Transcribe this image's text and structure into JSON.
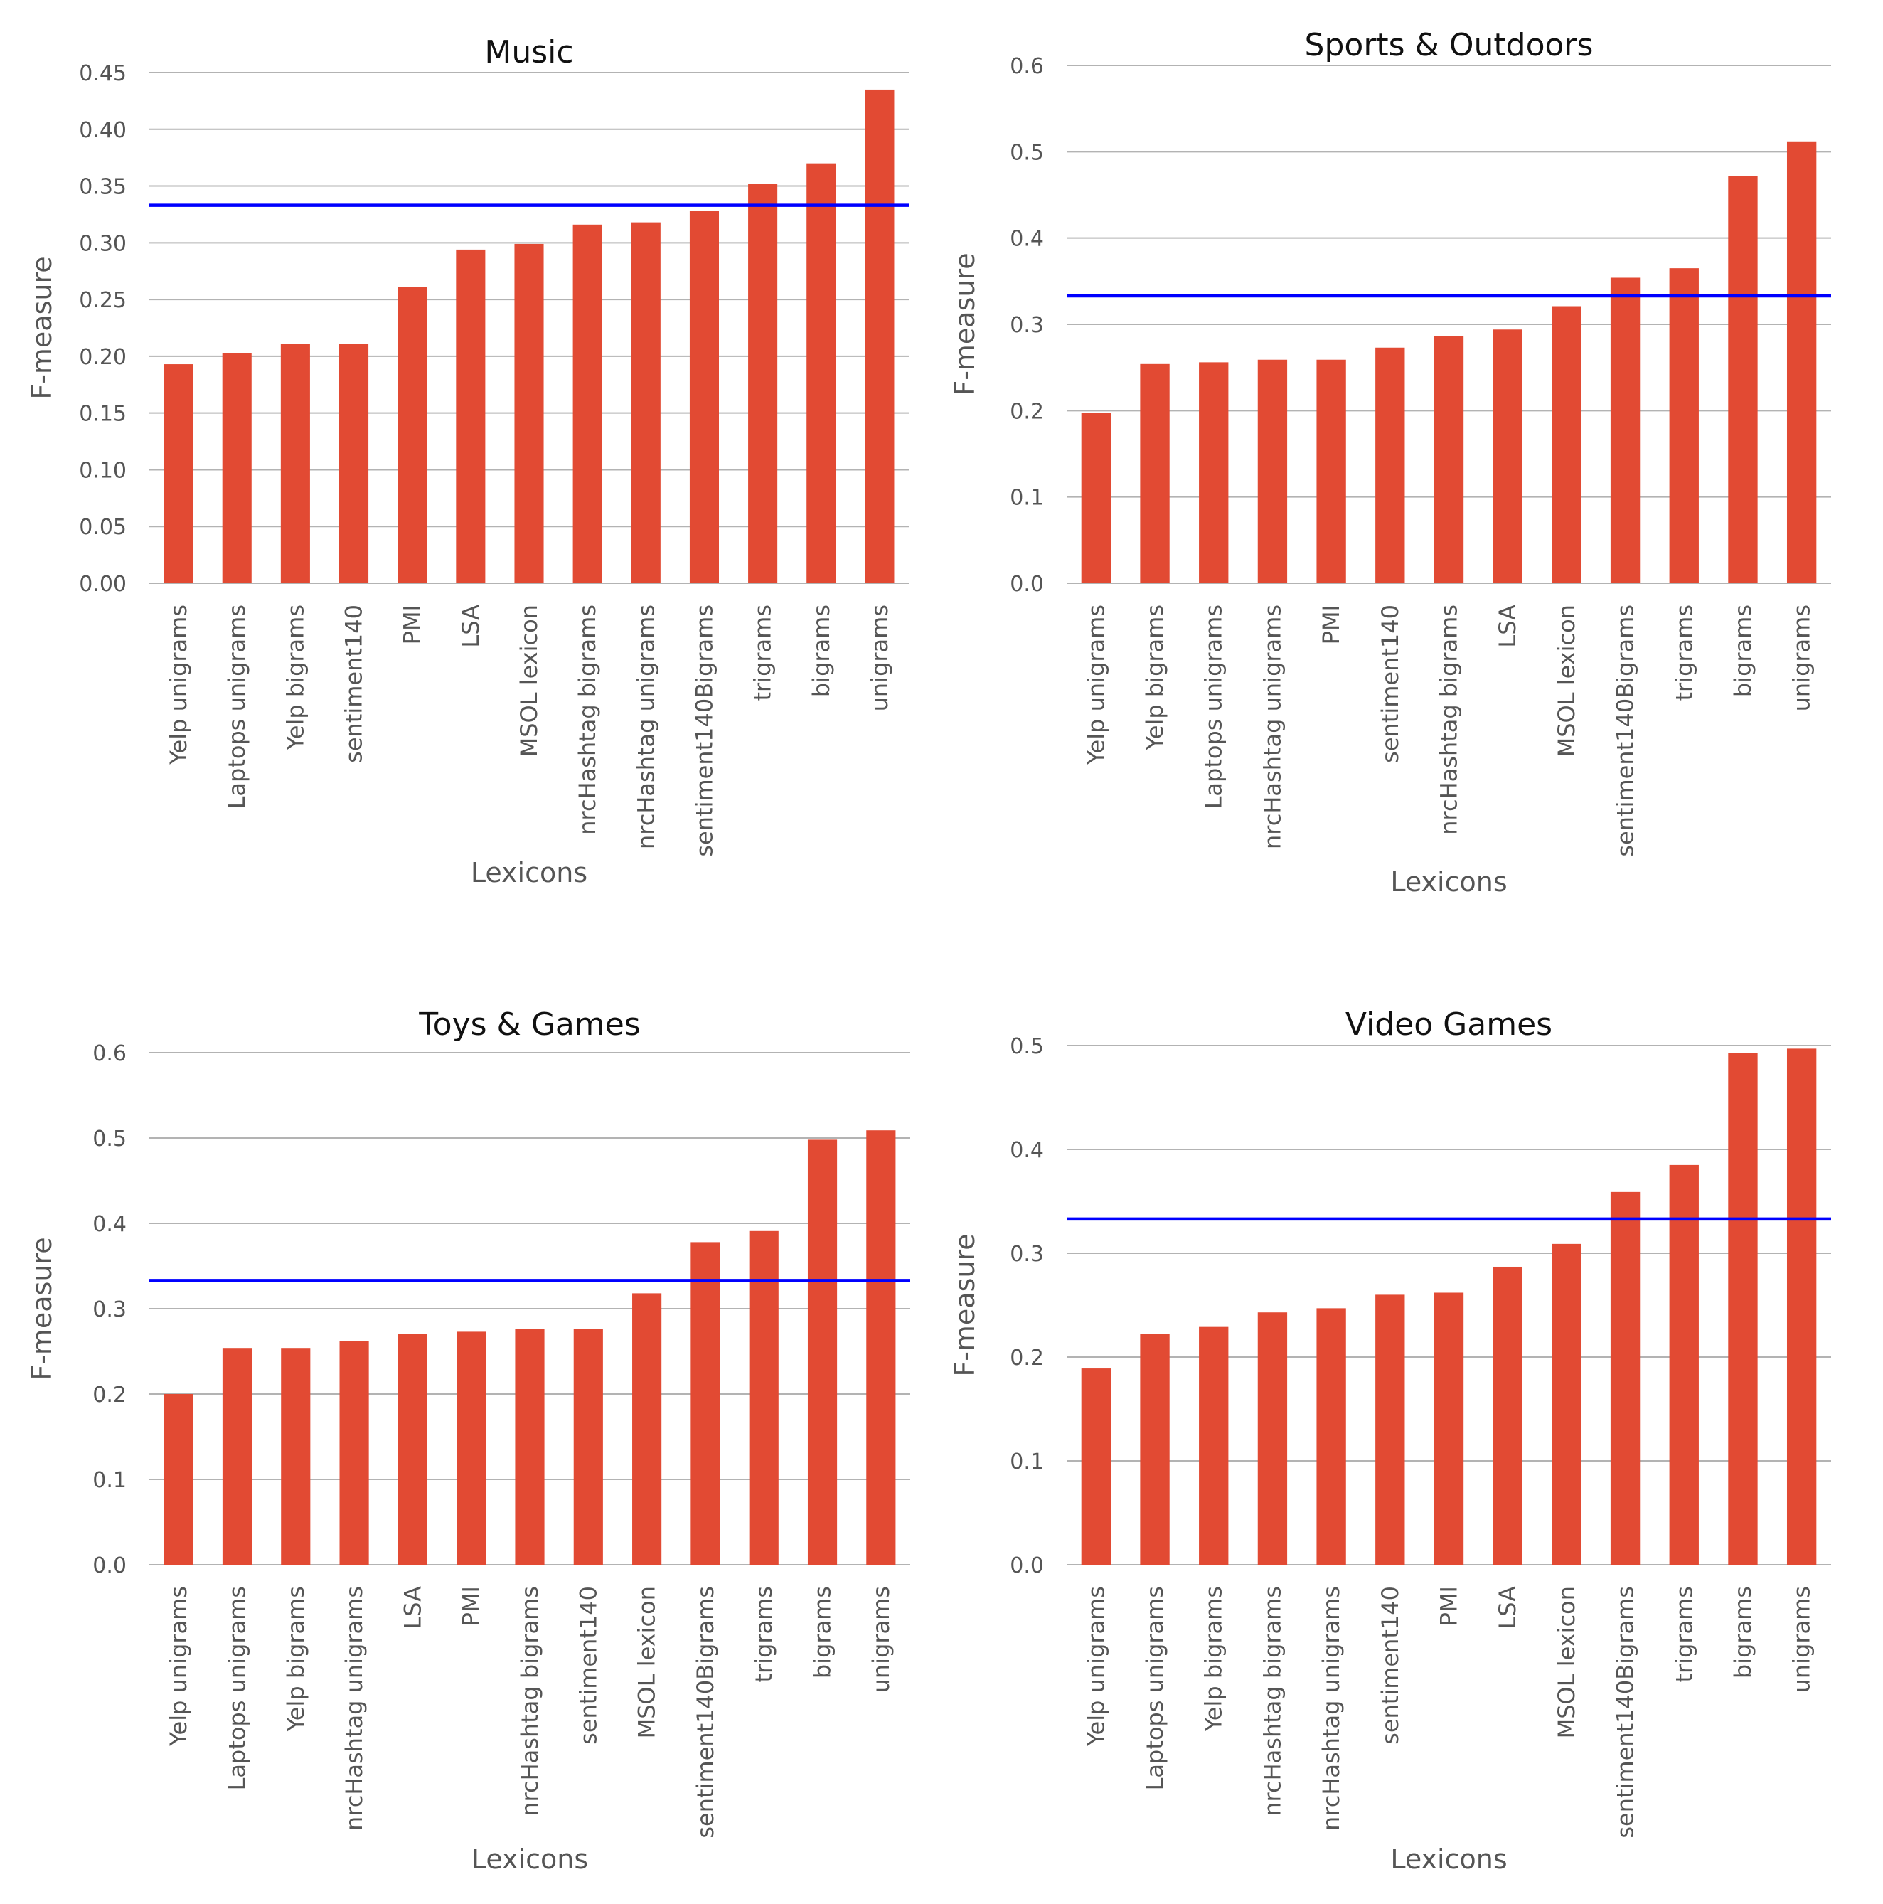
{
  "chart_data": [
    {
      "type": "bar",
      "title": "Music",
      "xlabel": "Lexicons",
      "ylabel": "F-measure",
      "ylim": [
        0,
        0.45
      ],
      "yticks": [
        "0.00",
        "0.05",
        "0.10",
        "0.15",
        "0.20",
        "0.25",
        "0.30",
        "0.35",
        "0.40",
        "0.45"
      ],
      "categories": [
        "Yelp unigrams",
        "Laptops unigrams",
        "Yelp bigrams",
        "sentiment140",
        "PMI",
        "LSA",
        "MSOL lexicon",
        "nrcHashtag bigrams",
        "nrcHashtag unigrams",
        "sentiment140Bigrams",
        "trigrams",
        "bigrams",
        "unigrams"
      ],
      "values": [
        0.193,
        0.203,
        0.211,
        0.211,
        0.261,
        0.294,
        0.299,
        0.316,
        0.318,
        0.328,
        0.352,
        0.37,
        0.435
      ],
      "reference_line": 0.333,
      "grid": true,
      "colors": {
        "bar": "#e24a33",
        "line": "#0000ff"
      }
    },
    {
      "type": "bar",
      "title": "Sports & Outdoors",
      "xlabel": "Lexicons",
      "ylabel": "F-measure",
      "ylim": [
        0,
        0.6
      ],
      "yticks": [
        "0.0",
        "0.1",
        "0.2",
        "0.3",
        "0.4",
        "0.5",
        "0.6"
      ],
      "categories": [
        "Yelp unigrams",
        "Yelp bigrams",
        "Laptops unigrams",
        "nrcHashtag unigrams",
        "PMI",
        "sentiment140",
        "nrcHashtag bigrams",
        "LSA",
        "MSOL lexicon",
        "sentiment140Bigrams",
        "trigrams",
        "bigrams",
        "unigrams"
      ],
      "values": [
        0.197,
        0.254,
        0.256,
        0.259,
        0.259,
        0.273,
        0.286,
        0.294,
        0.321,
        0.354,
        0.365,
        0.472,
        0.512
      ],
      "reference_line": 0.333,
      "grid": true,
      "colors": {
        "bar": "#e24a33",
        "line": "#0000ff"
      }
    },
    {
      "type": "bar",
      "title": "Toys & Games",
      "xlabel": "Lexicons",
      "ylabel": "F-measure",
      "ylim": [
        0,
        0.6
      ],
      "yticks": [
        "0.0",
        "0.1",
        "0.2",
        "0.3",
        "0.4",
        "0.5",
        "0.6"
      ],
      "categories": [
        "Yelp unigrams",
        "Laptops unigrams",
        "Yelp bigrams",
        "nrcHashtag unigrams",
        "LSA",
        "PMI",
        "nrcHashtag bigrams",
        "sentiment140",
        "MSOL lexicon",
        "sentiment140Bigrams",
        "trigrams",
        "bigrams",
        "unigrams"
      ],
      "values": [
        0.2,
        0.254,
        0.254,
        0.262,
        0.27,
        0.273,
        0.276,
        0.276,
        0.318,
        0.378,
        0.391,
        0.498,
        0.509
      ],
      "reference_line": 0.333,
      "grid": true,
      "colors": {
        "bar": "#e24a33",
        "line": "#0000ff"
      }
    },
    {
      "type": "bar",
      "title": "Video Games",
      "xlabel": "Lexicons",
      "ylabel": "F-measure",
      "ylim": [
        0,
        0.5
      ],
      "yticks": [
        "0.0",
        "0.1",
        "0.2",
        "0.3",
        "0.4",
        "0.5"
      ],
      "categories": [
        "Yelp unigrams",
        "Laptops unigrams",
        "Yelp bigrams",
        "nrcHashtag bigrams",
        "nrcHashtag unigrams",
        "sentiment140",
        "PMI",
        "LSA",
        "MSOL lexicon",
        "sentiment140Bigrams",
        "trigrams",
        "bigrams",
        "unigrams"
      ],
      "values": [
        0.189,
        0.222,
        0.229,
        0.243,
        0.247,
        0.26,
        0.262,
        0.287,
        0.309,
        0.359,
        0.385,
        0.493,
        0.497
      ],
      "reference_line": 0.333,
      "grid": true,
      "colors": {
        "bar": "#e24a33",
        "line": "#0000ff"
      }
    }
  ]
}
